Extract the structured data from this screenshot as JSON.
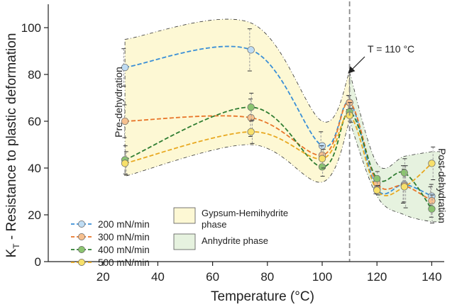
{
  "chart_data": {
    "type": "line",
    "xlabel": "Temperature (°C)",
    "ylabel_main": "K",
    "ylabel_sub": "T",
    "ylabel_rest": " - Resistance to plastic deformation",
    "xlim": [
      0,
      143
    ],
    "ylim": [
      0,
      110
    ],
    "x_ticks": [
      {
        "value": 20,
        "label": "20"
      },
      {
        "value": 40,
        "label": "40"
      },
      {
        "value": 60,
        "label": "60"
      },
      {
        "value": 80,
        "label": "80"
      },
      {
        "value": 100,
        "label": "100"
      },
      {
        "value": 120,
        "label": "120"
      },
      {
        "value": 140,
        "label": "140"
      }
    ],
    "y_ticks": [
      {
        "value": 0,
        "label": "0"
      },
      {
        "value": 20,
        "label": "20"
      },
      {
        "value": 40,
        "label": "40"
      },
      {
        "value": 60,
        "label": "60"
      },
      {
        "value": 80,
        "label": "80"
      },
      {
        "value": 100,
        "label": "100"
      }
    ],
    "x": [
      28,
      74,
      100,
      110,
      120,
      130,
      140
    ],
    "series": [
      {
        "name": "200 mN/min",
        "color": "#3a8fd6",
        "fill": "#bfdcf3",
        "values": [
          83,
          90.5,
          49.5,
          68,
          31,
          33,
          28
        ],
        "err": [
          8,
          9,
          6,
          3,
          2,
          8,
          4
        ]
      },
      {
        "name": "300 mN/min",
        "color": "#e8762a",
        "fill": "#f6c08f",
        "values": [
          60,
          61.5,
          45.5,
          68,
          33.5,
          32.5,
          26
        ],
        "err": [
          7,
          8,
          4,
          3,
          3,
          7,
          7
        ]
      },
      {
        "name": "400 mN/min",
        "color": "#2f7d32",
        "fill": "#8bc470",
        "values": [
          43.5,
          66,
          40.5,
          64,
          35.5,
          38,
          22.5
        ],
        "err": [
          6,
          6,
          4,
          4,
          3,
          6,
          6
        ]
      },
      {
        "name": "500 mN/min",
        "color": "#e8a820",
        "fill": "#f7e06a",
        "values": [
          42,
          55.5,
          44,
          62.5,
          30.5,
          32,
          42
        ],
        "err": [
          5,
          5,
          4,
          3,
          2,
          9,
          7
        ]
      }
    ],
    "regions": [
      {
        "name": "Gypsum-Hemihydrite phase",
        "color": "#fdf8d4"
      },
      {
        "name": "Anhydrite phase",
        "color": "#e6f2df"
      }
    ],
    "vline": {
      "x": 110,
      "label": "T = 110 °C"
    },
    "annotations": {
      "pre": "Pre-dehydration",
      "post": "Post-dehydration"
    },
    "legend": [
      {
        "label": "200 mN/min",
        "line1": "",
        "line2": ""
      },
      {
        "label": "300 mN/min",
        "line1": "",
        "line2": ""
      },
      {
        "label": "400 mN/min",
        "line1": "",
        "line2": ""
      },
      {
        "label": "500 mN/min",
        "line1": "",
        "line2": ""
      }
    ],
    "region_legend": [
      {
        "line1": "Gypsum-Hemihydrite",
        "line2": "phase"
      },
      {
        "line1": "Anhydrite phase",
        "line2": ""
      }
    ]
  }
}
